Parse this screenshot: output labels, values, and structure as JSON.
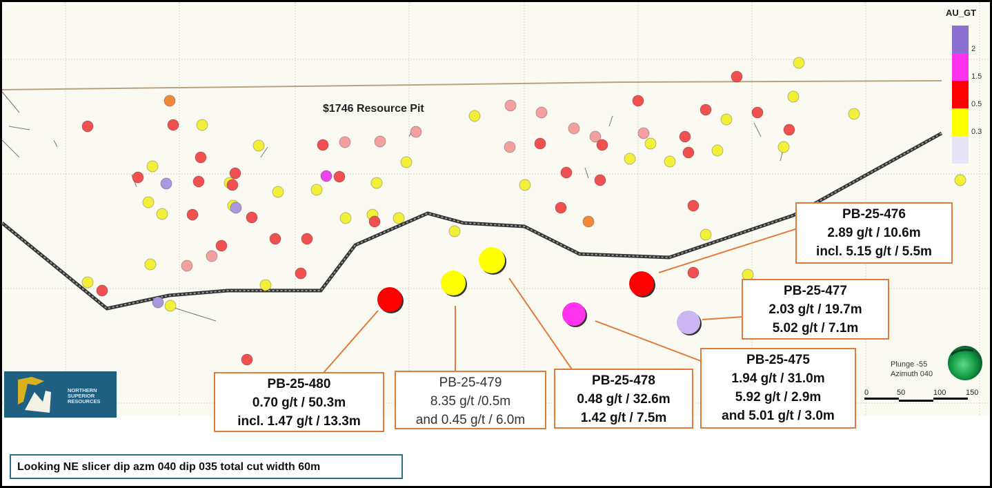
{
  "pit_label": "$1746 Resource Pit",
  "legend": {
    "title": "AU_GT",
    "bins": [
      {
        "label": "2",
        "color": "#8a6fd0"
      },
      {
        "label": "1.5",
        "color": "#ff33ee"
      },
      {
        "label": "0.5",
        "color": "#ff0000"
      },
      {
        "label": "0.3",
        "color": "#ffff00"
      },
      {
        "label": "",
        "color": "#e6e4f5"
      }
    ]
  },
  "orientation": {
    "plunge": "Plunge -55",
    "azimuth": "Azimuth 040"
  },
  "scale_bar": {
    "ticks": [
      "0",
      "50",
      "100",
      "150"
    ]
  },
  "logo": {
    "text": [
      "NORTHERN",
      "SUPERIOR",
      "RESOURCES"
    ]
  },
  "callouts": [
    {
      "hole": "PB-25-476",
      "lines": [
        "2.89 g/t / 10.6m",
        "incl. 5.15 g/t / 5.5m"
      ],
      "grade_color": "#ff0000"
    },
    {
      "hole": "PB-25-477",
      "lines": [
        "2.03 g/t / 19.7m",
        "5.02 g/t / 7.1m"
      ],
      "grade_color": "#c9b6f2"
    },
    {
      "hole": "PB-25-475",
      "lines": [
        "1.94 g/t / 31.0m",
        "5.92 g/t / 2.9m",
        "and 5.01 g/t / 3.0m"
      ],
      "grade_color": "#ff33ee"
    },
    {
      "hole": "PB-25-478",
      "lines": [
        "0.48 g/t / 32.6m",
        "1.42 g/t / 7.5m"
      ],
      "grade_color": "#ffff00"
    },
    {
      "hole": "PB-25-479",
      "lines": [
        "8.35 g/t /0.5m",
        "and 0.45 g/t / 6.0m"
      ],
      "grade_color": "#ffff00"
    },
    {
      "hole": "PB-25-480",
      "lines": [
        "0.70 g/t / 50.3m",
        "incl. 1.47 g/t / 13.3m"
      ],
      "grade_color": "#ff0000"
    }
  ],
  "colors": {
    "callout_border": "#e07b39",
    "pit_line": "#b8a27a",
    "caption_border": "#2e6f8e",
    "logo_bg": "#1f5f82"
  },
  "caption": "Looking NE slicer dip azm 040 dip 035 total cut width 60m"
}
